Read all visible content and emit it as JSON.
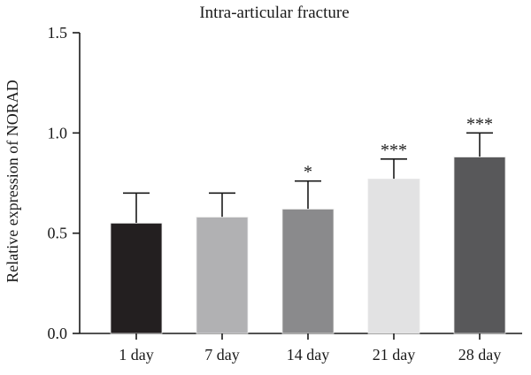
{
  "chart_data": {
    "type": "bar",
    "title": "Intra-articular fracture",
    "xlabel": "",
    "ylabel": "Relative expression of NORAD",
    "ylim": [
      0,
      1.5
    ],
    "yticks": [
      "0.0",
      "0.5",
      "1.0",
      "1.5"
    ],
    "categories": [
      "1 day",
      "7 day",
      "14 day",
      "21 day",
      "28 day"
    ],
    "values": [
      0.55,
      0.58,
      0.62,
      0.77,
      0.88
    ],
    "error_upper": [
      0.7,
      0.7,
      0.76,
      0.87,
      1.0
    ],
    "significance": [
      "",
      "",
      "*",
      "***",
      "***"
    ],
    "colors": [
      "#231f20",
      "#b1b1b3",
      "#8a8a8c",
      "#e2e2e3",
      "#58585a"
    ],
    "grid": false,
    "legend": "none"
  }
}
